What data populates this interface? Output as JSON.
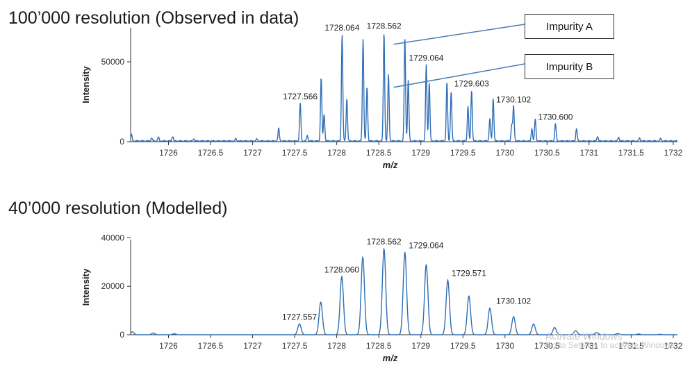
{
  "chart_data": [
    {
      "type": "line",
      "title": "100’000 resolution (Observed in data)",
      "xlabel": "m/z",
      "ylabel": "Intensity",
      "xlim": [
        1725.55,
        1732.05
      ],
      "ylim": [
        0,
        80000
      ],
      "x_ticks": [
        1726,
        1726.5,
        1727,
        1727.5,
        1728,
        1728.5,
        1729,
        1729.5,
        1730,
        1730.5,
        1731,
        1731.5,
        1732
      ],
      "x_tick_labels": [
        "1726",
        "1726.5",
        "1727",
        "1727.5",
        "1728",
        "1728.5",
        "1729",
        "1729.5",
        "1730",
        "1730.5",
        "1731",
        "1731.5",
        "1732"
      ],
      "y_ticks": [
        0,
        50000
      ],
      "y_tick_labels": [
        "0",
        "50000"
      ],
      "peak_width": 0.008,
      "peaks": [
        [
          1725.56,
          4000
        ],
        [
          1725.8,
          2000
        ],
        [
          1725.88,
          2500
        ],
        [
          1726.05,
          3000
        ],
        [
          1726.3,
          1500
        ],
        [
          1726.8,
          1500
        ],
        [
          1727.05,
          1200
        ],
        [
          1727.31,
          8000
        ],
        [
          1727.566,
          24000
        ],
        [
          1727.65,
          3500
        ],
        [
          1727.815,
          40000
        ],
        [
          1727.85,
          17000
        ],
        [
          1728.064,
          67000
        ],
        [
          1728.12,
          27000
        ],
        [
          1728.313,
          64000
        ],
        [
          1728.36,
          34000
        ],
        [
          1728.562,
          68000
        ],
        [
          1728.615,
          42000
        ],
        [
          1728.81,
          65000
        ],
        [
          1728.85,
          38000
        ],
        [
          1729.064,
          48000
        ],
        [
          1729.1,
          37000
        ],
        [
          1729.31,
          37000
        ],
        [
          1729.36,
          31000
        ],
        [
          1729.56,
          22000
        ],
        [
          1729.603,
          32000
        ],
        [
          1729.82,
          14000
        ],
        [
          1729.86,
          27000
        ],
        [
          1730.08,
          10000
        ],
        [
          1730.102,
          22000
        ],
        [
          1730.32,
          8000
        ],
        [
          1730.36,
          14000
        ],
        [
          1730.6,
          11000
        ],
        [
          1730.85,
          8000
        ],
        [
          1731.1,
          3000
        ],
        [
          1731.35,
          2500
        ],
        [
          1731.6,
          1800
        ],
        [
          1731.85,
          1500
        ]
      ],
      "peak_labels": [
        {
          "x": 1727.566,
          "y": 24000,
          "text": "1727.566"
        },
        {
          "x": 1728.064,
          "y": 67000,
          "text": "1728.064"
        },
        {
          "x": 1728.562,
          "y": 68000,
          "text": "1728.562"
        },
        {
          "x": 1729.064,
          "y": 48000,
          "text": "1729.064"
        },
        {
          "x": 1729.603,
          "y": 32000,
          "text": "1729.603"
        },
        {
          "x": 1730.102,
          "y": 22000,
          "text": "1730.102"
        },
        {
          "x": 1730.6,
          "y": 11000,
          "text": "1730.600"
        }
      ],
      "annotations": [
        {
          "label": "Impurity A",
          "x": 1728.65,
          "y": 61000
        },
        {
          "label": "Impurity B",
          "x": 1728.65,
          "y": 34000
        }
      ],
      "line_color": "#2e6fb5",
      "grid": false
    },
    {
      "type": "line",
      "title": "40’000 resolution (Modelled)",
      "xlabel": "m/z",
      "ylabel": "Intensity",
      "xlim": [
        1725.55,
        1732.05
      ],
      "ylim": [
        0,
        45000
      ],
      "x_ticks": [
        1726,
        1726.5,
        1727,
        1727.5,
        1728,
        1728.5,
        1729,
        1729.5,
        1730,
        1730.5,
        1731,
        1731.5,
        1732
      ],
      "x_tick_labels": [
        "1726",
        "1726.5",
        "1727",
        "1727.5",
        "1728",
        "1728.5",
        "1729",
        "1729.5",
        "1730",
        "1730.5",
        "1731",
        "1731.5",
        "1732"
      ],
      "y_ticks": [
        0,
        20000,
        40000
      ],
      "y_tick_labels": [
        "0",
        "20000",
        "40000"
      ],
      "peak_width": 0.02,
      "peaks": [
        [
          1725.57,
          1200
        ],
        [
          1725.82,
          700
        ],
        [
          1726.07,
          400
        ],
        [
          1727.557,
          4500
        ],
        [
          1727.81,
          13500
        ],
        [
          1728.06,
          24000
        ],
        [
          1728.31,
          32000
        ],
        [
          1728.562,
          35500
        ],
        [
          1728.81,
          34000
        ],
        [
          1729.064,
          29000
        ],
        [
          1729.32,
          22500
        ],
        [
          1729.571,
          16000
        ],
        [
          1729.82,
          11000
        ],
        [
          1730.102,
          7500
        ],
        [
          1730.34,
          4500
        ],
        [
          1730.59,
          3000
        ],
        [
          1730.84,
          1700
        ],
        [
          1731.09,
          900
        ],
        [
          1731.34,
          500
        ],
        [
          1731.59,
          300
        ],
        [
          1731.84,
          200
        ]
      ],
      "peak_labels": [
        {
          "x": 1727.557,
          "y": 4500,
          "text": "1727.557"
        },
        {
          "x": 1728.06,
          "y": 24000,
          "text": "1728.060"
        },
        {
          "x": 1728.562,
          "y": 35500,
          "text": "1728.562"
        },
        {
          "x": 1729.064,
          "y": 34000,
          "text": "1729.064"
        },
        {
          "x": 1729.571,
          "y": 22500,
          "text": "1729.571"
        },
        {
          "x": 1730.102,
          "y": 11000,
          "text": "1730.102"
        }
      ],
      "line_color": "#2e6fb5",
      "grid": false
    }
  ],
  "callouts": {
    "impurity_a": "Impurity A",
    "impurity_b": "Impurity B"
  },
  "watermark": {
    "line1": "Activate Windows",
    "line2": "Go to Settings to activate Windows."
  }
}
